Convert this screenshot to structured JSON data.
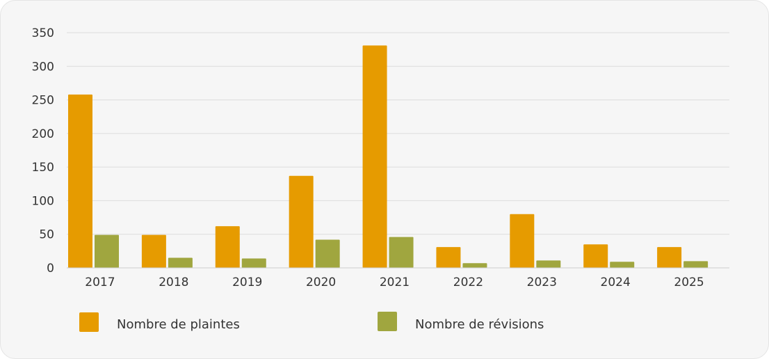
{
  "chart_data": {
    "type": "bar",
    "categories": [
      "2017",
      "2018",
      "2019",
      "2020",
      "2021",
      "2022",
      "2023",
      "2024",
      "2025"
    ],
    "series": [
      {
        "name": "Nombre de plaintes",
        "color": "#e69b00",
        "values": [
          258,
          49,
          62,
          137,
          331,
          31,
          80,
          35,
          31
        ]
      },
      {
        "name": "Nombre de révisions",
        "color": "#a0a63f",
        "values": [
          49,
          15,
          14,
          42,
          46,
          7,
          11,
          9,
          10
        ]
      }
    ],
    "ylim": [
      0,
      350
    ],
    "yticks": [
      "0",
      "50",
      "100",
      "150",
      "200",
      "250",
      "300",
      "350"
    ],
    "grid": true,
    "legend_position": "bottom"
  }
}
